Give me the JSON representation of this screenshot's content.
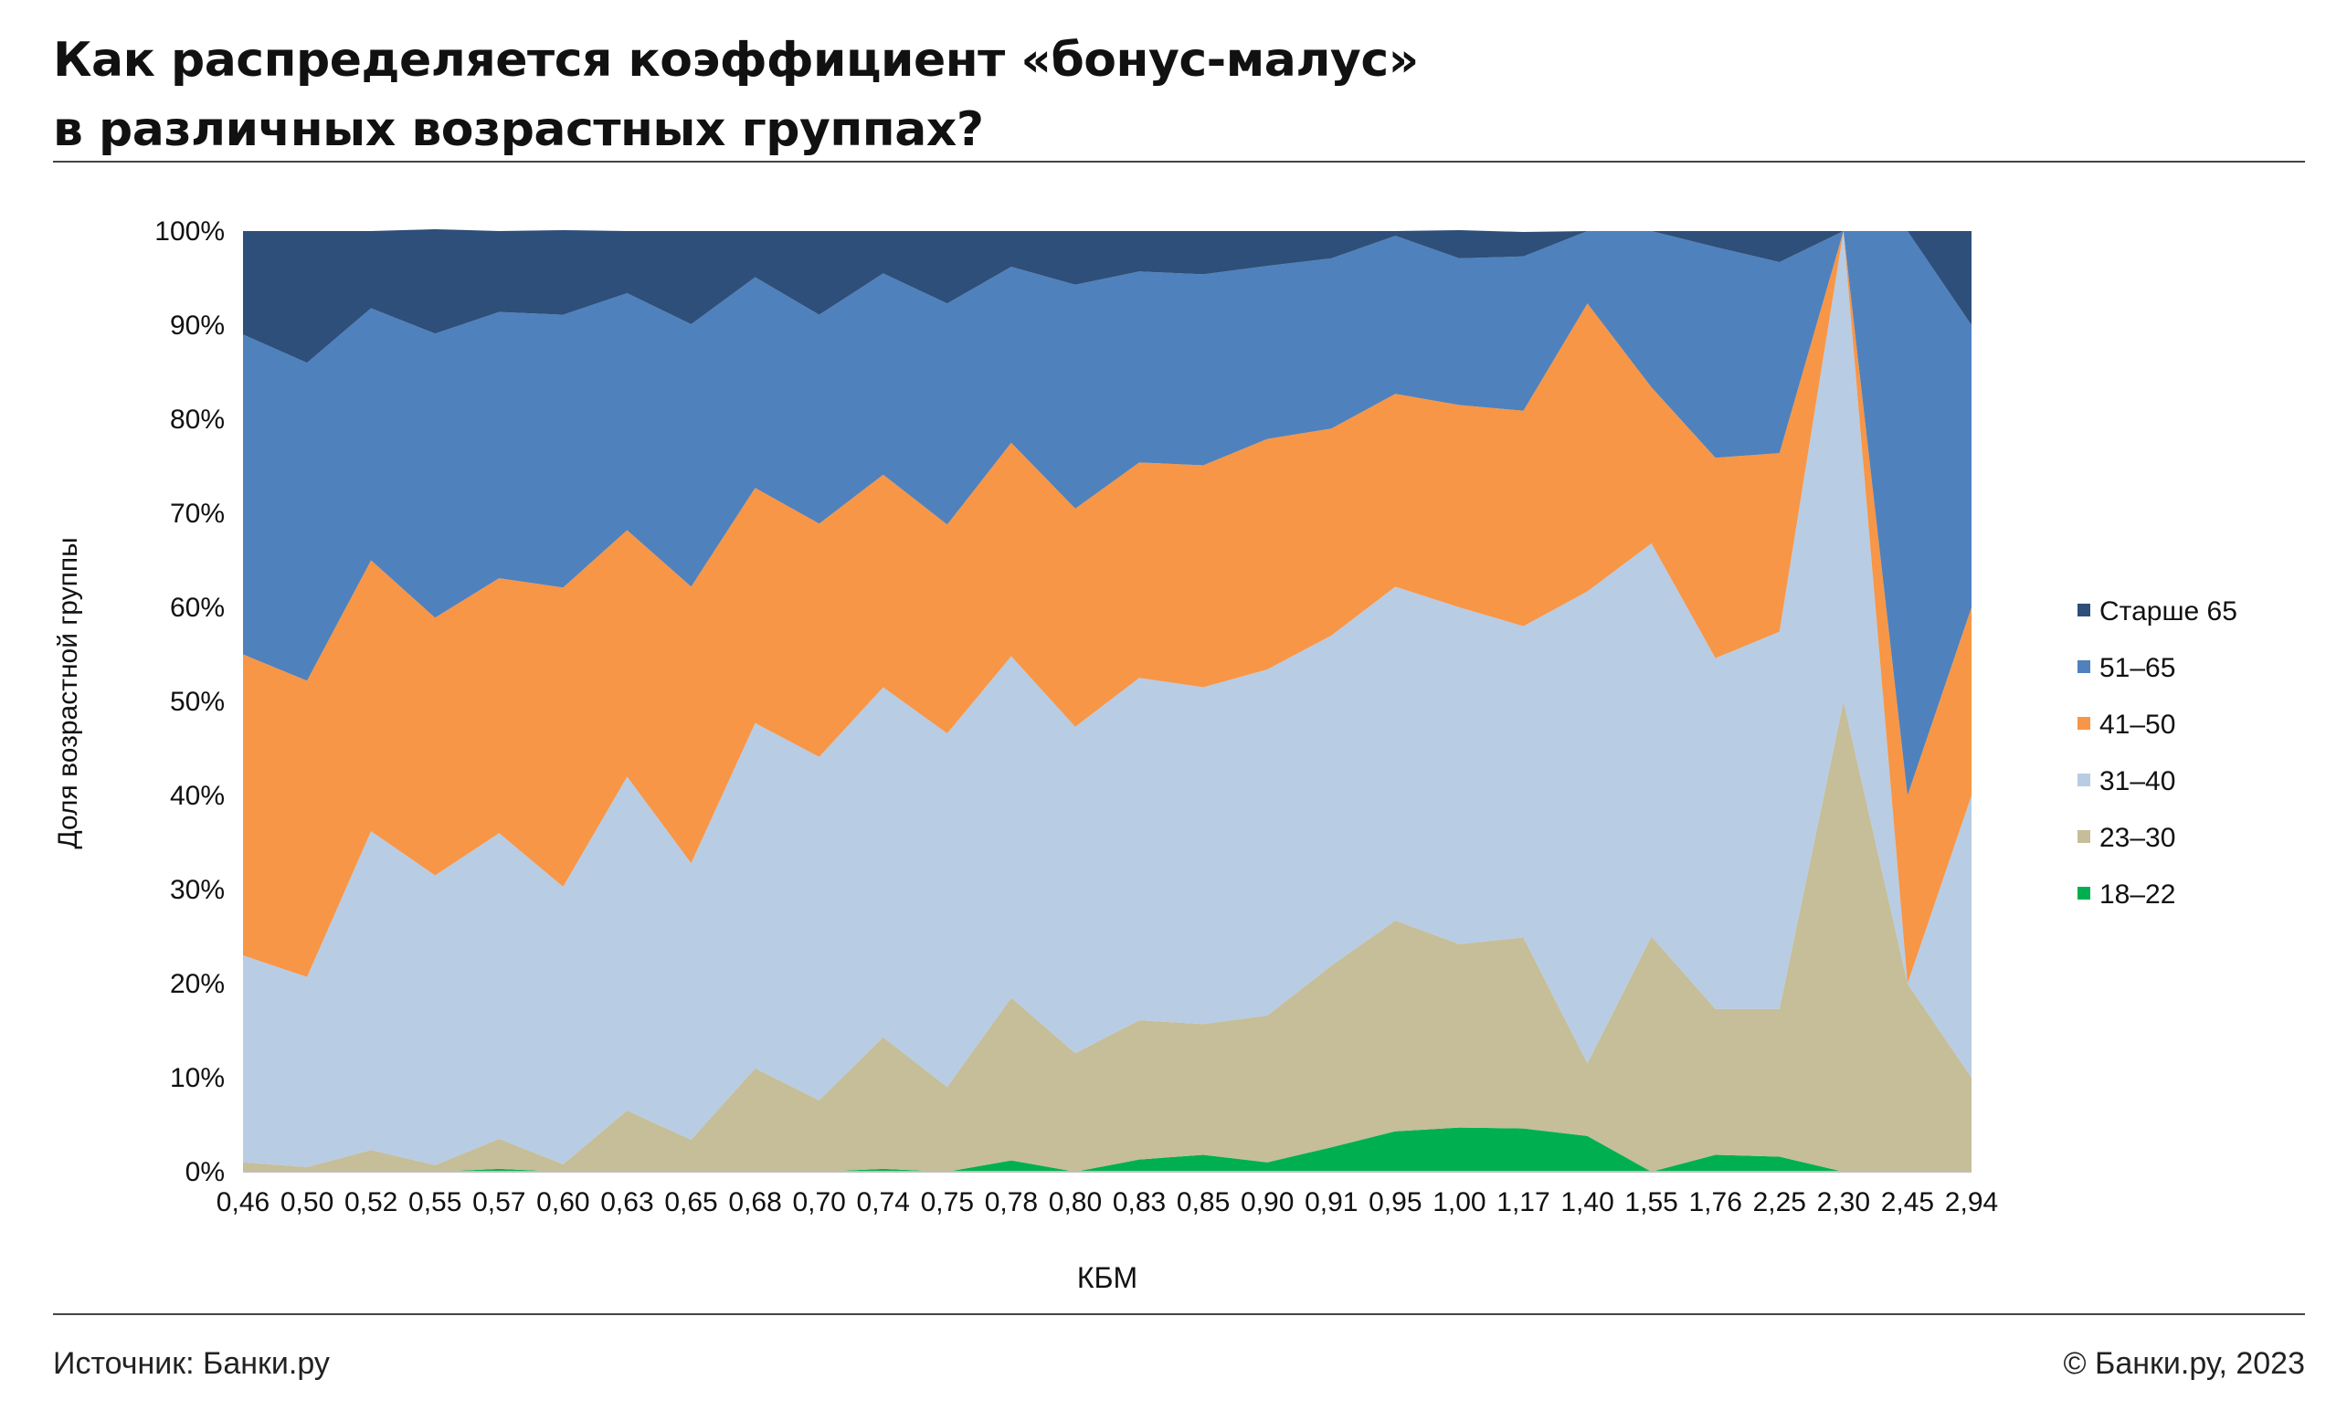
{
  "header": {
    "title_line1": "Как распределяется коэффициент «бонус-малус»",
    "title_line2": "в различных возрастных группах?"
  },
  "footer": {
    "source": "Источник: Банки.ру",
    "copyright": "© Банки.ру, 2023"
  },
  "chart_data": {
    "type": "area",
    "stacked": true,
    "normalized": true,
    "xlabel": "КБМ",
    "ylabel": "Доля возрастной группы",
    "ylim": [
      0,
      100
    ],
    "yticks": [
      "0%",
      "10%",
      "20%",
      "30%",
      "40%",
      "50%",
      "60%",
      "70%",
      "80%",
      "90%",
      "100%"
    ],
    "grid": false,
    "legend_position": "right",
    "categories": [
      "0,46",
      "0,50",
      "0,52",
      "0,55",
      "0,57",
      "0,60",
      "0,63",
      "0,65",
      "0,68",
      "0,70",
      "0,74",
      "0,75",
      "0,78",
      "0,80",
      "0,83",
      "0,85",
      "0,90",
      "0,91",
      "0,95",
      "1,00",
      "1,17",
      "1,40",
      "1,55",
      "1,76",
      "2,25",
      "2,30",
      "2,45",
      "2,94"
    ],
    "series": [
      {
        "name": "18–22",
        "color": "#00b050",
        "values": [
          0,
          0,
          0,
          0,
          0.3,
          0,
          0,
          0,
          0,
          0,
          0.3,
          0,
          1.2,
          0,
          1.3,
          1.8,
          1,
          2.6,
          4.3,
          4.7,
          4.6,
          3.8,
          0,
          1.8,
          1.6,
          0,
          0,
          0
        ]
      },
      {
        "name": "23–30",
        "color": "#c5be98",
        "values": [
          1,
          0.5,
          2.3,
          0.7,
          3.2,
          0.8,
          6.5,
          3.4,
          11,
          7.6,
          14,
          9,
          17.3,
          12.6,
          14.8,
          13.9,
          15.6,
          19.3,
          22.4,
          19.5,
          20.3,
          7.7,
          25,
          15.5,
          15.7,
          50,
          20,
          10
        ]
      },
      {
        "name": "31–40",
        "color": "#b8cce4",
        "values": [
          22,
          20.2,
          33.9,
          30.8,
          32.5,
          29.5,
          35.5,
          29.4,
          36.7,
          36.5,
          37.2,
          37.6,
          36.3,
          34.7,
          36.4,
          35.8,
          36.8,
          35.1,
          35.5,
          35.8,
          33.1,
          50.2,
          41.8,
          37.3,
          40.1,
          50,
          0,
          30
        ]
      },
      {
        "name": "41–50",
        "color": "#f79646",
        "values": [
          32,
          31.5,
          28.8,
          27.4,
          27.1,
          31.8,
          26.2,
          29.4,
          25,
          24.8,
          22.6,
          22.2,
          22.7,
          23.2,
          22.9,
          23.6,
          24.5,
          22,
          20.5,
          21.5,
          22.9,
          30.6,
          16.6,
          21.3,
          19,
          0,
          20,
          20
        ]
      },
      {
        "name": "51–65",
        "color": "#4f81bd",
        "values": [
          34,
          33.8,
          26.8,
          30.2,
          28.3,
          29,
          25.2,
          27.9,
          22.4,
          22.2,
          21.4,
          23.5,
          18.7,
          23.8,
          20.3,
          20.3,
          18.4,
          18.1,
          16.8,
          15.6,
          16.4,
          7.7,
          16.6,
          22.4,
          20.3,
          0,
          60,
          30
        ]
      },
      {
        "name": "Старше 65",
        "color": "#2e4f79",
        "values": [
          11,
          14,
          8.2,
          11.1,
          8.6,
          9,
          6.6,
          9.9,
          4.9,
          8.9,
          4.5,
          7.7,
          3.8,
          5.7,
          4.3,
          4.6,
          3.7,
          2.9,
          0.5,
          3,
          2.6,
          0,
          0,
          1.7,
          3.3,
          0,
          0,
          10
        ]
      }
    ]
  }
}
